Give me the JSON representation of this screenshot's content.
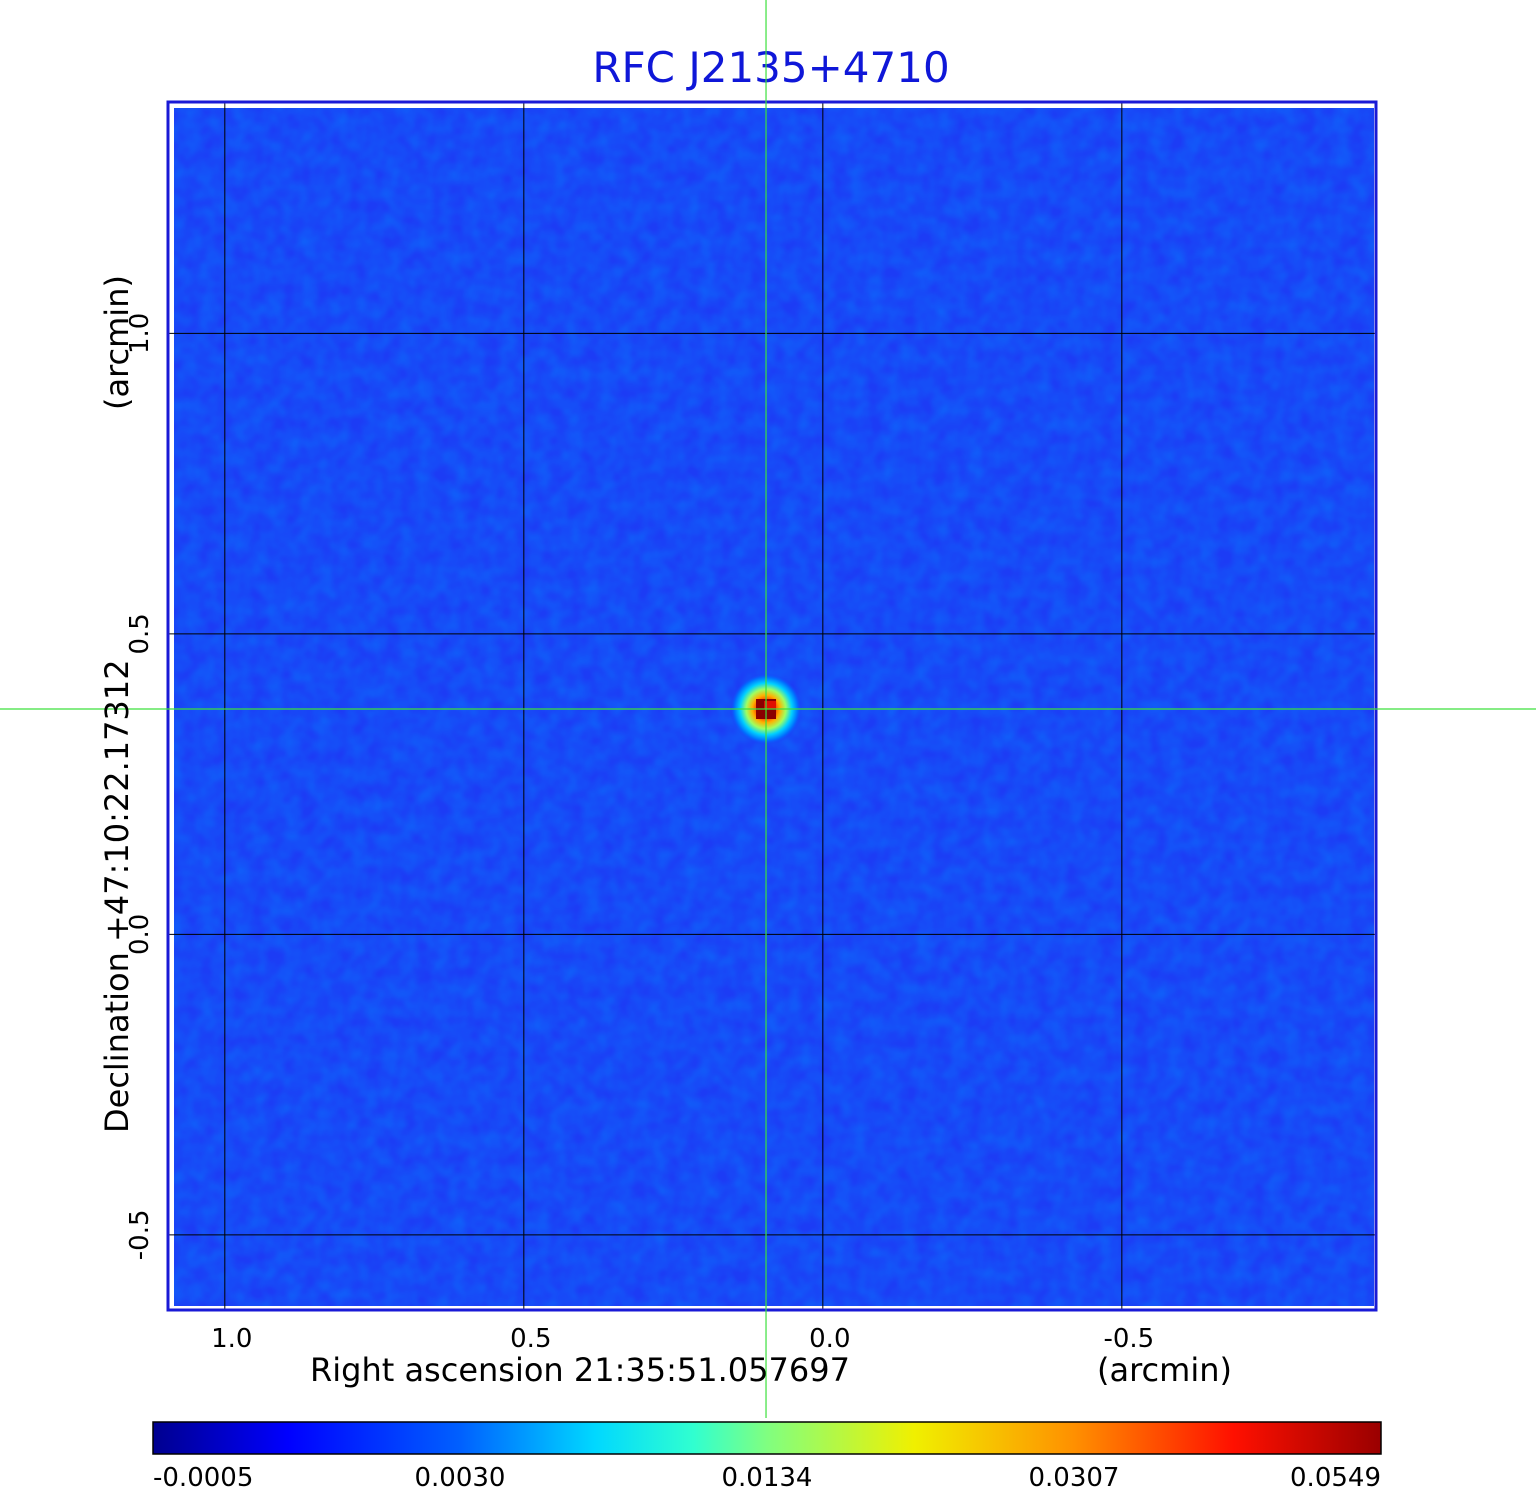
{
  "chart_data": {
    "type": "heatmap",
    "title": "RFC J2135+4710",
    "x_axis": {
      "label": "Right ascension  21:35:51.057697",
      "unit_label": "(arcmin)",
      "range": [
        1.095,
        -0.925
      ],
      "ticks": [
        {
          "value": 1.0,
          "label": "1.0"
        },
        {
          "value": 0.5,
          "label": "0.5"
        },
        {
          "value": 0.0,
          "label": "0.0"
        },
        {
          "value": -0.5,
          "label": "-0.5"
        }
      ],
      "grid": true
    },
    "y_axis": {
      "label": "Declination  +47:10:22.17312",
      "unit_label": "(arcmin)",
      "range": [
        -0.625,
        1.385
      ],
      "ticks": [
        {
          "value": 1.0,
          "label": "1.0"
        },
        {
          "value": 0.5,
          "label": "0.5"
        },
        {
          "value": 0.0,
          "label": "0.0"
        },
        {
          "value": -0.5,
          "label": "-0.5"
        }
      ],
      "grid": true
    },
    "crosshair": {
      "x": 0.095,
      "y": 0.375,
      "color": "#3ce03c"
    },
    "source_peak": {
      "x": 0.095,
      "y": 0.375,
      "value": 0.0549
    },
    "colorbar": {
      "colormap": "jet",
      "placement": "bottom",
      "ticks": [
        {
          "value": -0.0005,
          "label": "-0.0005"
        },
        {
          "value": 0.003,
          "label": "0.0030"
        },
        {
          "value": 0.0134,
          "label": "0.0134"
        },
        {
          "value": 0.0307,
          "label": "0.0307"
        },
        {
          "value": 0.0549,
          "label": "0.0549"
        }
      ]
    },
    "colors": {
      "title": "#0f17d8",
      "frame": "#1a1ad6",
      "background_field": "#1c3cf5",
      "grid": "#000000"
    }
  }
}
